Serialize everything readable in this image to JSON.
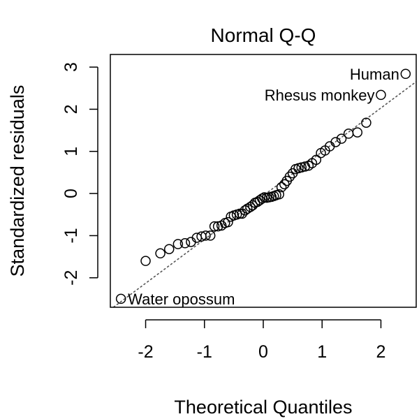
{
  "chart_data": {
    "type": "scatter",
    "title": "Normal Q-Q",
    "xlabel": "Theoretical Quantiles",
    "ylabel": "Standardized residuals",
    "xlim": [
      -2.6,
      2.6
    ],
    "ylim": [
      -2.7,
      3.3
    ],
    "x_ticks": [
      -2,
      -1,
      0,
      1,
      2
    ],
    "y_ticks": [
      -2,
      -1,
      0,
      1,
      2,
      3
    ],
    "x_tick_labels": [
      "-2",
      "-1",
      "0",
      "1",
      "2"
    ],
    "y_tick_labels": [
      "-2",
      "-1",
      "0",
      "1",
      "2",
      "3"
    ],
    "grid": false,
    "reference_line": {
      "style": "dotted",
      "slope": 1.04,
      "intercept": -0.05
    },
    "points": [
      [
        -2.42,
        -2.5
      ],
      [
        -2.0,
        -1.6
      ],
      [
        -1.75,
        -1.42
      ],
      [
        -1.6,
        -1.32
      ],
      [
        -1.45,
        -1.2
      ],
      [
        -1.33,
        -1.18
      ],
      [
        -1.23,
        -1.15
      ],
      [
        -1.13,
        -1.05
      ],
      [
        -1.05,
        -1.02
      ],
      [
        -0.98,
        -1.0
      ],
      [
        -0.9,
        -1.0
      ],
      [
        -0.83,
        -0.78
      ],
      [
        -0.77,
        -0.78
      ],
      [
        -0.71,
        -0.76
      ],
      [
        -0.65,
        -0.7
      ],
      [
        -0.6,
        -0.68
      ],
      [
        -0.55,
        -0.55
      ],
      [
        -0.5,
        -0.52
      ],
      [
        -0.45,
        -0.5
      ],
      [
        -0.4,
        -0.48
      ],
      [
        -0.36,
        -0.48
      ],
      [
        -0.31,
        -0.4
      ],
      [
        -0.27,
        -0.36
      ],
      [
        -0.22,
        -0.32
      ],
      [
        -0.18,
        -0.28
      ],
      [
        -0.14,
        -0.22
      ],
      [
        -0.1,
        -0.2
      ],
      [
        -0.06,
        -0.16
      ],
      [
        -0.02,
        -0.12
      ],
      [
        0.02,
        -0.09
      ],
      [
        0.06,
        -0.1
      ],
      [
        0.1,
        -0.09
      ],
      [
        0.14,
        -0.08
      ],
      [
        0.18,
        -0.06
      ],
      [
        0.22,
        -0.04
      ],
      [
        0.27,
        -0.02
      ],
      [
        0.31,
        0.15
      ],
      [
        0.36,
        0.22
      ],
      [
        0.4,
        0.3
      ],
      [
        0.45,
        0.4
      ],
      [
        0.5,
        0.48
      ],
      [
        0.55,
        0.58
      ],
      [
        0.6,
        0.6
      ],
      [
        0.65,
        0.62
      ],
      [
        0.71,
        0.64
      ],
      [
        0.77,
        0.66
      ],
      [
        0.83,
        0.72
      ],
      [
        0.9,
        0.8
      ],
      [
        0.98,
        0.96
      ],
      [
        1.05,
        1.02
      ],
      [
        1.13,
        1.12
      ],
      [
        1.23,
        1.22
      ],
      [
        1.33,
        1.3
      ],
      [
        1.45,
        1.42
      ],
      [
        1.6,
        1.45
      ],
      [
        1.75,
        1.68
      ],
      [
        2.0,
        2.34
      ],
      [
        2.42,
        2.84
      ]
    ],
    "annotations": [
      {
        "text": "Human",
        "x": 2.42,
        "y": 2.84,
        "side": "left"
      },
      {
        "text": "Rhesus monkey",
        "x": 2.0,
        "y": 2.34,
        "side": "left"
      },
      {
        "text": "Water opossum",
        "x": -2.42,
        "y": -2.5,
        "side": "right"
      }
    ]
  }
}
